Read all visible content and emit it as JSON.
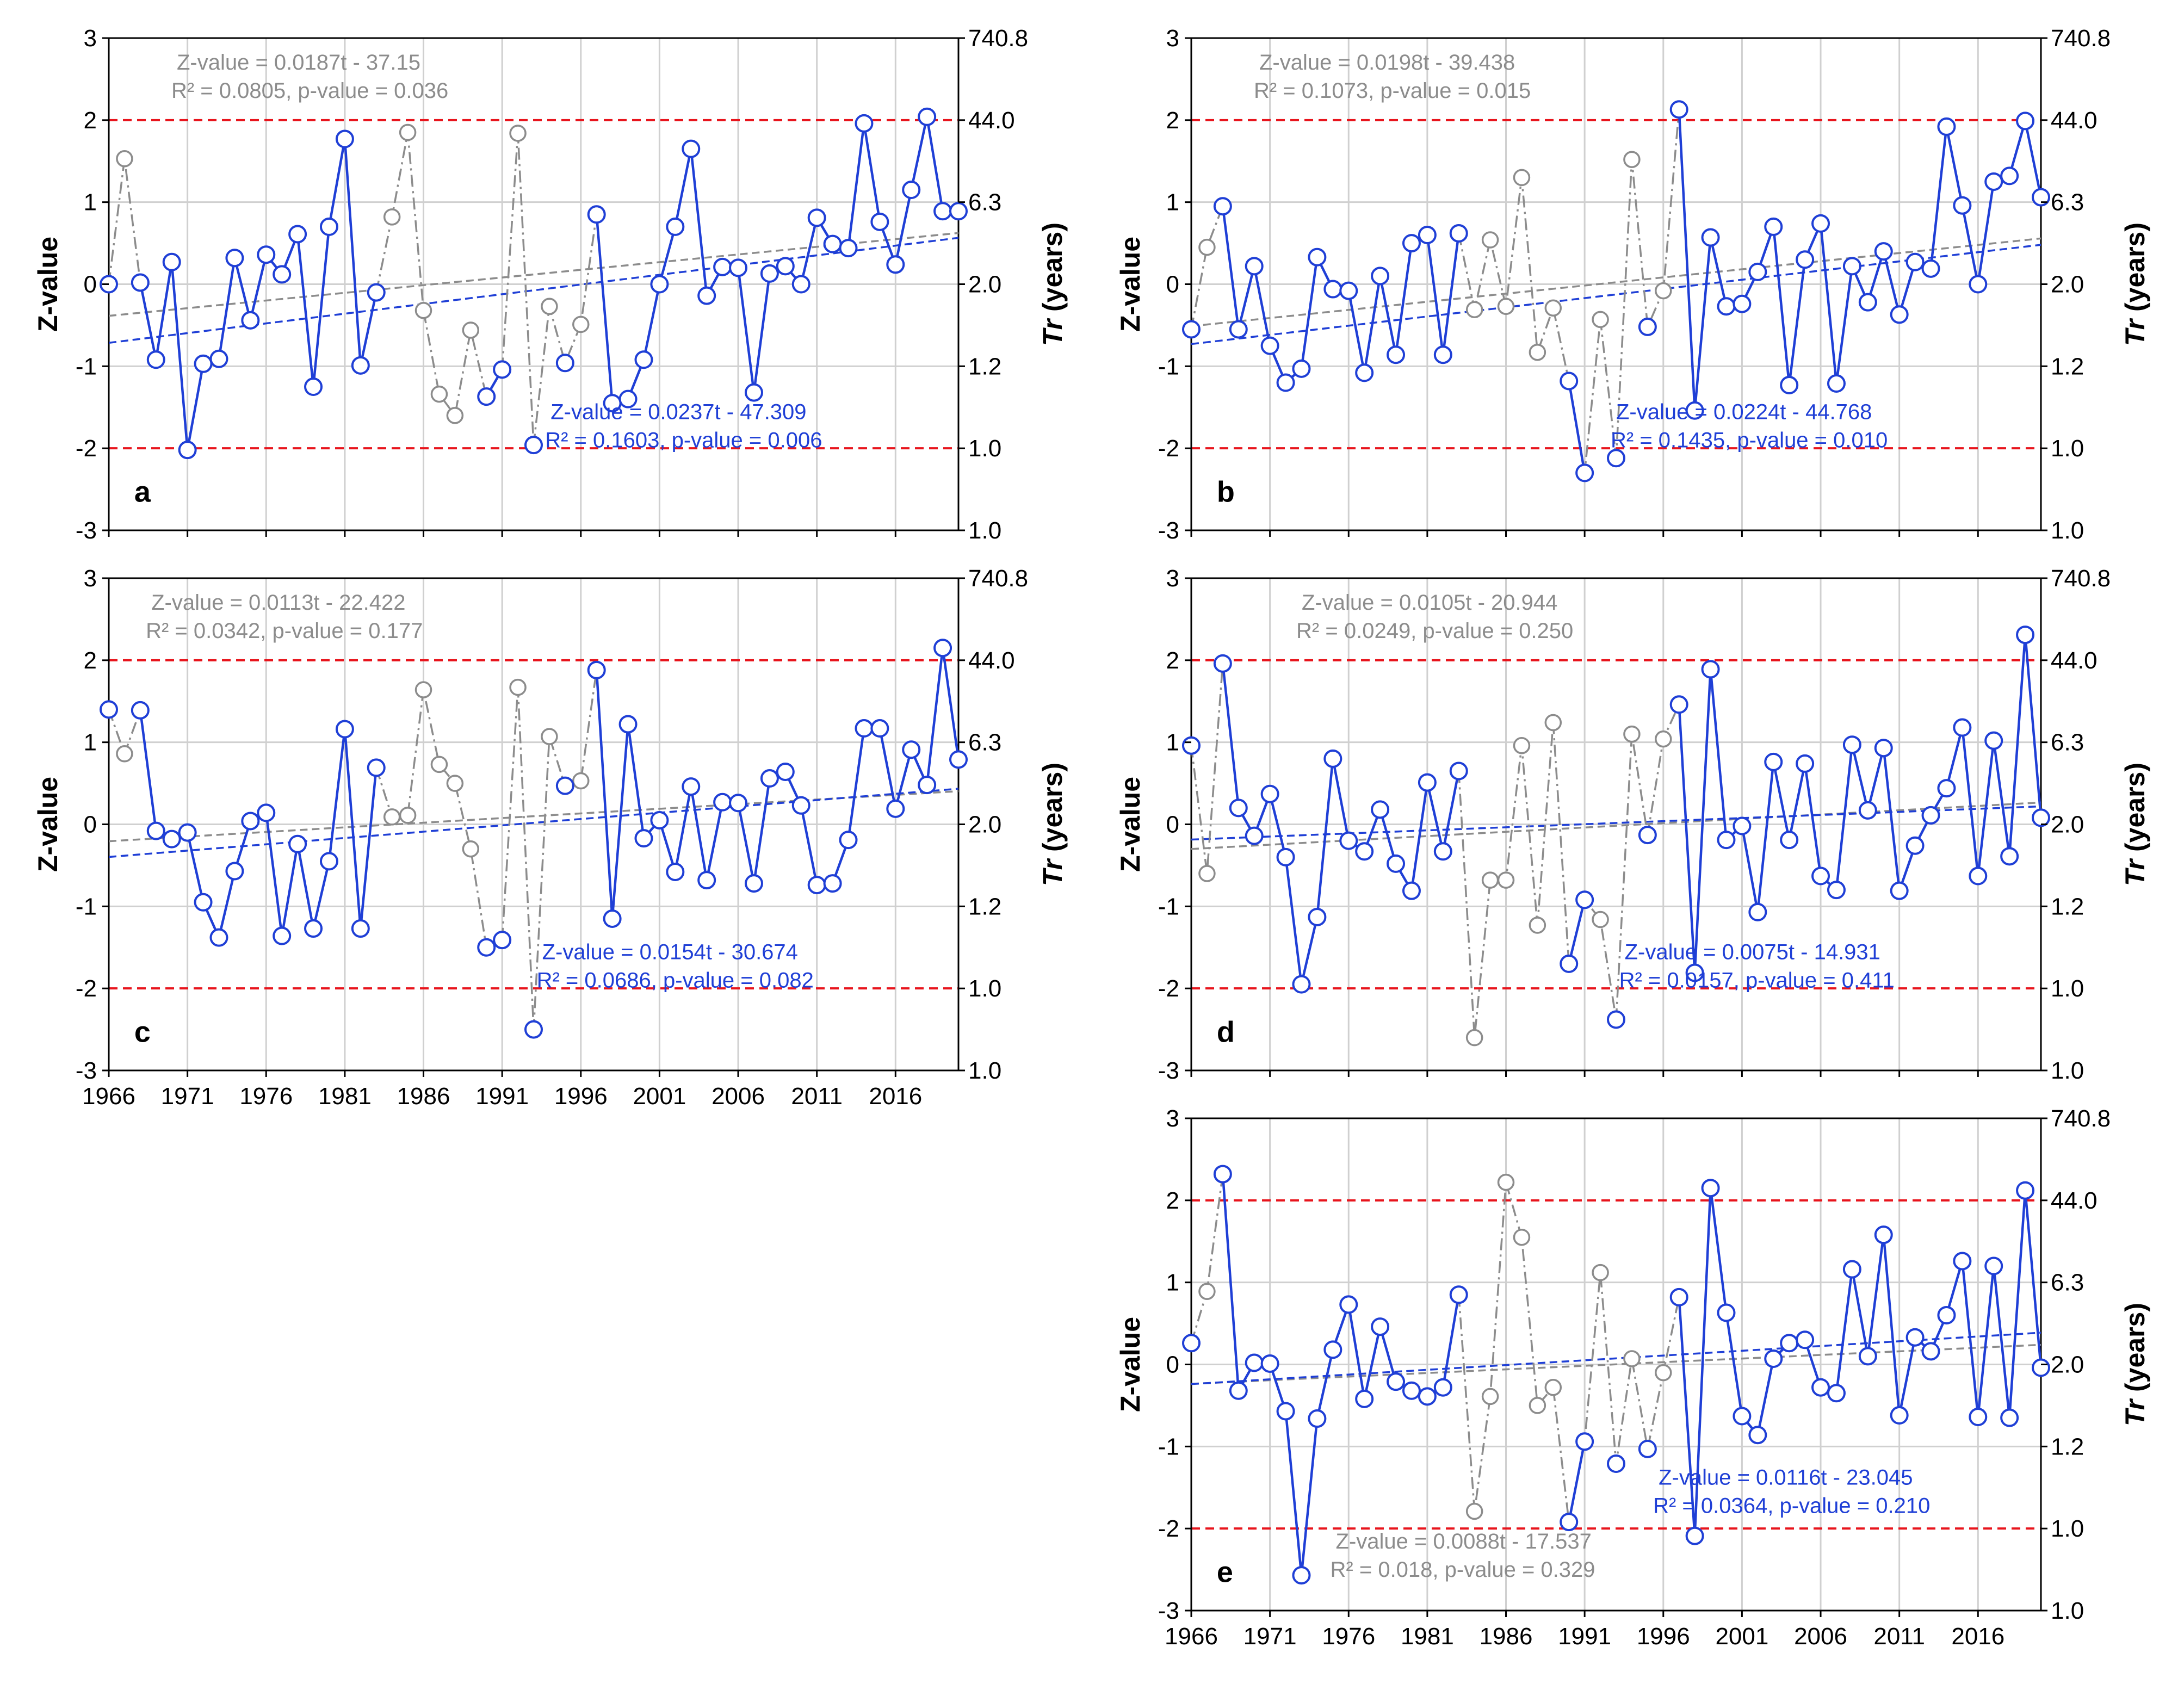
{
  "chart_data": [
    {
      "type": "line",
      "panel_label": "a",
      "x": [
        1966,
        1967,
        1968,
        1969,
        1970,
        1971,
        1972,
        1973,
        1974,
        1975,
        1976,
        1977,
        1978,
        1979,
        1980,
        1981,
        1982,
        1983,
        1984,
        1985,
        1986,
        1987,
        1988,
        1989,
        1990,
        1991,
        1992,
        1993,
        1994,
        1995,
        1996,
        1997,
        1998,
        1999,
        2000,
        2001,
        2002,
        2003,
        2004,
        2005,
        2006,
        2007,
        2008,
        2009,
        2010,
        2011,
        2012,
        2013,
        2014,
        2015,
        2016,
        2017,
        2018,
        2019,
        2020
      ],
      "series": [
        {
          "style": "blue-solid",
          "color": "#1f3fd6",
          "values": [
            0.0,
            null,
            0.02,
            -0.92,
            0.27,
            -2.02,
            -0.97,
            -0.91,
            0.32,
            -0.44,
            0.36,
            0.12,
            0.61,
            -1.25,
            0.7,
            1.77,
            -0.99,
            -0.1,
            null,
            null,
            null,
            null,
            null,
            null,
            -1.37,
            -1.04,
            null,
            -1.96,
            null,
            -0.96,
            null,
            0.85,
            -1.45,
            -1.4,
            -0.92,
            0.0,
            0.7,
            1.65,
            -0.14,
            0.21,
            0.2,
            -1.32,
            0.13,
            0.22,
            0.0,
            0.81,
            0.49,
            0.44,
            1.96,
            0.76,
            0.24,
            1.15,
            2.04,
            0.89,
            0.89
          ]
        },
        {
          "style": "gray-dashdot",
          "color": "#8c8c8c",
          "values": [
            0.0,
            1.53,
            0.02,
            null,
            null,
            null,
            null,
            null,
            null,
            null,
            null,
            null,
            null,
            null,
            null,
            1.77,
            null,
            -0.1,
            0.82,
            1.85,
            -0.32,
            -1.34,
            -1.6,
            -0.56,
            -1.37,
            -1.04,
            1.84,
            -1.96,
            -0.27,
            -0.96,
            -0.49,
            0.85,
            null,
            null,
            null,
            null,
            null,
            null,
            null,
            null,
            null,
            null,
            null,
            null,
            null,
            null,
            null,
            null,
            null,
            null,
            null,
            null,
            null,
            null,
            null
          ]
        }
      ],
      "trend_gray": {
        "equation": "Z-value = 0.0187t - 37.15",
        "stats": "R² = 0.0805, p-value = 0.036",
        "slope": 0.0187,
        "intercept": -37.15
      },
      "trend_blue": {
        "equation": "Z-value = 0.0237t - 47.309",
        "stats": "R² = 0.1603, p-value = 0.006",
        "slope": 0.0237,
        "intercept": -47.309
      }
    },
    {
      "type": "line",
      "panel_label": "b",
      "x": [
        1966,
        1967,
        1968,
        1969,
        1970,
        1971,
        1972,
        1973,
        1974,
        1975,
        1976,
        1977,
        1978,
        1979,
        1980,
        1981,
        1982,
        1983,
        1984,
        1985,
        1986,
        1987,
        1988,
        1989,
        1990,
        1991,
        1992,
        1993,
        1994,
        1995,
        1996,
        1997,
        1998,
        1999,
        2000,
        2001,
        2002,
        2003,
        2004,
        2005,
        2006,
        2007,
        2008,
        2009,
        2010,
        2011,
        2012,
        2013,
        2014,
        2015,
        2016,
        2017,
        2018,
        2019,
        2020
      ],
      "series": [
        {
          "style": "blue-solid",
          "color": "#1f3fd6",
          "values": [
            -0.55,
            null,
            0.95,
            -0.55,
            0.22,
            -0.75,
            -1.2,
            -1.03,
            0.33,
            -0.06,
            -0.08,
            -1.08,
            0.1,
            -0.86,
            0.5,
            0.6,
            -0.86,
            0.62,
            null,
            null,
            null,
            null,
            null,
            null,
            -1.18,
            -2.3,
            null,
            -2.12,
            null,
            -0.52,
            null,
            2.13,
            -1.54,
            0.57,
            -0.27,
            -0.24,
            0.15,
            0.7,
            -1.23,
            0.3,
            0.74,
            -1.21,
            0.22,
            -0.22,
            0.4,
            -0.37,
            0.27,
            0.19,
            1.92,
            0.96,
            0.0,
            1.25,
            1.32,
            1.99,
            1.06
          ]
        },
        {
          "style": "gray-dashdot",
          "color": "#8c8c8c",
          "values": [
            -0.55,
            0.45,
            0.95,
            null,
            null,
            null,
            null,
            null,
            null,
            null,
            null,
            null,
            null,
            null,
            null,
            null,
            null,
            0.62,
            -0.31,
            0.54,
            -0.27,
            1.3,
            -0.83,
            -0.29,
            -1.18,
            -2.3,
            -0.43,
            -2.12,
            1.52,
            -0.52,
            -0.08,
            2.13,
            null,
            null,
            null,
            null,
            null,
            null,
            null,
            null,
            null,
            null,
            null,
            null,
            null,
            null,
            null,
            null,
            null,
            null,
            null,
            null,
            null,
            null,
            null
          ]
        }
      ],
      "trend_gray": {
        "equation": "Z-value = 0.0198t - 39.438",
        "stats": "R² = 0.1073, p-value = 0.015",
        "slope": 0.0198,
        "intercept": -39.438
      },
      "trend_blue": {
        "equation": "Z-value = 0.0224t - 44.768",
        "stats": "R² = 0.1435, p-value = 0.010",
        "slope": 0.0224,
        "intercept": -44.768
      }
    },
    {
      "type": "line",
      "panel_label": "c",
      "x": [
        1966,
        1967,
        1968,
        1969,
        1970,
        1971,
        1972,
        1973,
        1974,
        1975,
        1976,
        1977,
        1978,
        1979,
        1980,
        1981,
        1982,
        1983,
        1984,
        1985,
        1986,
        1987,
        1988,
        1989,
        1990,
        1991,
        1992,
        1993,
        1994,
        1995,
        1996,
        1997,
        1998,
        1999,
        2000,
        2001,
        2002,
        2003,
        2004,
        2005,
        2006,
        2007,
        2008,
        2009,
        2010,
        2011,
        2012,
        2013,
        2014,
        2015,
        2016,
        2017,
        2018,
        2019,
        2020
      ],
      "series": [
        {
          "style": "blue-solid",
          "color": "#1f3fd6",
          "values": [
            1.4,
            null,
            1.39,
            -0.08,
            -0.18,
            -0.1,
            -0.95,
            -1.38,
            -0.57,
            0.04,
            0.14,
            -1.36,
            -0.24,
            -1.27,
            -0.45,
            1.16,
            -1.27,
            0.69,
            null,
            null,
            null,
            null,
            null,
            null,
            -1.5,
            -1.41,
            null,
            -2.5,
            null,
            0.47,
            null,
            1.88,
            -1.15,
            1.22,
            -0.17,
            0.05,
            -0.58,
            0.46,
            -0.68,
            0.27,
            0.26,
            -0.72,
            0.56,
            0.64,
            0.23,
            -0.74,
            -0.72,
            -0.19,
            1.17,
            1.17,
            0.19,
            0.91,
            0.48,
            2.15,
            0.79
          ]
        },
        {
          "style": "gray-dashdot",
          "color": "#8c8c8c",
          "values": [
            1.4,
            0.86,
            1.39,
            null,
            null,
            null,
            null,
            null,
            null,
            null,
            null,
            null,
            null,
            null,
            null,
            null,
            null,
            0.69,
            0.09,
            0.11,
            1.64,
            0.73,
            0.5,
            -0.3,
            -1.5,
            -1.41,
            1.67,
            -2.5,
            1.07,
            0.47,
            0.53,
            1.88,
            null,
            null,
            null,
            null,
            null,
            null,
            null,
            null,
            null,
            null,
            null,
            null,
            null,
            null,
            null,
            null,
            null,
            null,
            null,
            null,
            null,
            null,
            null
          ]
        }
      ],
      "trend_gray": {
        "equation": "Z-value = 0.0113t - 22.422",
        "stats": "R² = 0.0342, p-value = 0.177",
        "slope": 0.0113,
        "intercept": -22.422
      },
      "trend_blue": {
        "equation": "Z-value = 0.0154t - 30.674",
        "stats": "R² = 0.0686, p-value = 0.082",
        "slope": 0.0154,
        "intercept": -30.674
      }
    },
    {
      "type": "line",
      "panel_label": "d",
      "x": [
        1966,
        1967,
        1968,
        1969,
        1970,
        1971,
        1972,
        1973,
        1974,
        1975,
        1976,
        1977,
        1978,
        1979,
        1980,
        1981,
        1982,
        1983,
        1984,
        1985,
        1986,
        1987,
        1988,
        1989,
        1990,
        1991,
        1992,
        1993,
        1994,
        1995,
        1996,
        1997,
        1998,
        1999,
        2000,
        2001,
        2002,
        2003,
        2004,
        2005,
        2006,
        2007,
        2008,
        2009,
        2010,
        2011,
        2012,
        2013,
        2014,
        2015,
        2016,
        2017,
        2018,
        2019,
        2020
      ],
      "series": [
        {
          "style": "blue-solid",
          "color": "#1f3fd6",
          "values": [
            0.96,
            null,
            1.96,
            0.2,
            -0.14,
            0.37,
            -0.4,
            -1.95,
            -1.13,
            0.8,
            -0.2,
            -0.33,
            0.18,
            -0.48,
            -0.81,
            0.51,
            -0.33,
            0.65,
            null,
            null,
            null,
            null,
            null,
            null,
            -1.7,
            -0.92,
            null,
            -2.38,
            null,
            -0.13,
            null,
            1.46,
            -1.81,
            1.89,
            -0.19,
            -0.02,
            -1.07,
            0.76,
            -0.19,
            0.74,
            -0.63,
            -0.8,
            0.97,
            0.17,
            0.93,
            -0.81,
            -0.26,
            0.11,
            0.44,
            1.18,
            -0.63,
            1.02,
            -0.39,
            2.31,
            0.08
          ]
        },
        {
          "style": "gray-dashdot",
          "color": "#8c8c8c",
          "values": [
            0.96,
            -0.6,
            1.96,
            null,
            null,
            null,
            null,
            null,
            null,
            null,
            null,
            null,
            null,
            null,
            null,
            null,
            null,
            0.65,
            -2.6,
            -0.68,
            -0.68,
            0.96,
            -1.23,
            1.24,
            -1.7,
            -0.92,
            -1.16,
            -2.38,
            1.1,
            -0.13,
            1.04,
            1.46,
            null,
            null,
            null,
            null,
            null,
            null,
            null,
            null,
            null,
            null,
            null,
            null,
            null,
            null,
            null,
            null,
            null,
            null,
            null,
            null,
            null,
            null,
            null
          ]
        }
      ],
      "trend_gray": {
        "equation": "Z-value = 0.0105t - 20.944",
        "stats": "R² = 0.0249, p-value = 0.250",
        "slope": 0.0105,
        "intercept": -20.944
      },
      "trend_blue": {
        "equation": "Z-value = 0.0075t - 14.931",
        "stats": "R² = 0.0157, p-value = 0.411",
        "slope": 0.0075,
        "intercept": -14.931
      }
    },
    {
      "type": "line",
      "panel_label": "e",
      "x": [
        1966,
        1967,
        1968,
        1969,
        1970,
        1971,
        1972,
        1973,
        1974,
        1975,
        1976,
        1977,
        1978,
        1979,
        1980,
        1981,
        1982,
        1983,
        1984,
        1985,
        1986,
        1987,
        1988,
        1989,
        1990,
        1991,
        1992,
        1993,
        1994,
        1995,
        1996,
        1997,
        1998,
        1999,
        2000,
        2001,
        2002,
        2003,
        2004,
        2005,
        2006,
        2007,
        2008,
        2009,
        2010,
        2011,
        2012,
        2013,
        2014,
        2015,
        2016,
        2017,
        2018,
        2019,
        2020
      ],
      "series": [
        {
          "style": "blue-solid",
          "color": "#1f3fd6",
          "values": [
            0.26,
            null,
            2.32,
            -0.32,
            0.02,
            0.01,
            -0.57,
            -2.57,
            -0.66,
            0.18,
            0.73,
            -0.42,
            0.46,
            -0.21,
            -0.32,
            -0.39,
            -0.28,
            0.85,
            null,
            null,
            null,
            null,
            null,
            null,
            -1.92,
            -0.94,
            null,
            -1.21,
            null,
            -1.03,
            null,
            0.82,
            -2.09,
            2.15,
            0.63,
            -0.63,
            -0.86,
            0.07,
            0.26,
            0.3,
            -0.28,
            -0.35,
            1.16,
            0.1,
            1.58,
            -0.62,
            0.33,
            0.16,
            0.6,
            1.26,
            -0.64,
            1.2,
            -0.65,
            2.12,
            -0.04
          ]
        },
        {
          "style": "gray-dashdot",
          "color": "#8c8c8c",
          "values": [
            0.26,
            0.89,
            2.32,
            null,
            null,
            null,
            null,
            null,
            null,
            null,
            null,
            null,
            null,
            null,
            null,
            null,
            null,
            0.85,
            -1.79,
            -0.39,
            2.22,
            1.55,
            -0.5,
            -0.28,
            -1.92,
            -0.94,
            1.12,
            -1.21,
            0.07,
            -1.03,
            -0.1,
            0.82,
            null,
            null,
            null,
            null,
            null,
            null,
            null,
            null,
            null,
            null,
            null,
            null,
            null,
            null,
            null,
            null,
            null,
            null,
            null,
            null,
            null,
            null,
            null
          ]
        }
      ],
      "trend_gray": {
        "equation": "Z-value = 0.0088t - 17.537",
        "stats": "R² = 0.018, p-value = 0.329",
        "slope": 0.0088,
        "intercept": -17.537
      },
      "trend_blue": {
        "equation": "Z-value = 0.0116t - 23.045",
        "stats": "R² = 0.0364, p-value = 0.210",
        "slope": 0.0116,
        "intercept": -23.045
      }
    }
  ],
  "axes": {
    "ylabel": "Z-value",
    "y2label_italic": "Tr",
    "y2label_rest": " (years)",
    "ylim": [
      -3,
      3
    ],
    "yticks": [
      "3",
      "2",
      "1",
      "0",
      "-1",
      "-2",
      "-3"
    ],
    "y2ticks": [
      "740.8",
      "44.0",
      "6.3",
      "2.0",
      "1.2",
      "1.0",
      "1.0"
    ],
    "xlim": [
      1966,
      2020
    ],
    "xticks": [
      "1966",
      "1971",
      "1976",
      "1981",
      "1986",
      "1991",
      "1996",
      "2001",
      "2006",
      "2011",
      "2016"
    ],
    "threshold_lines": [
      2,
      -2
    ],
    "threshold_color": "#e8141c",
    "grid": true
  },
  "colors": {
    "blue": "#1f3fd6",
    "gray": "#8c8c8c",
    "grid": "#d0d0d0"
  }
}
